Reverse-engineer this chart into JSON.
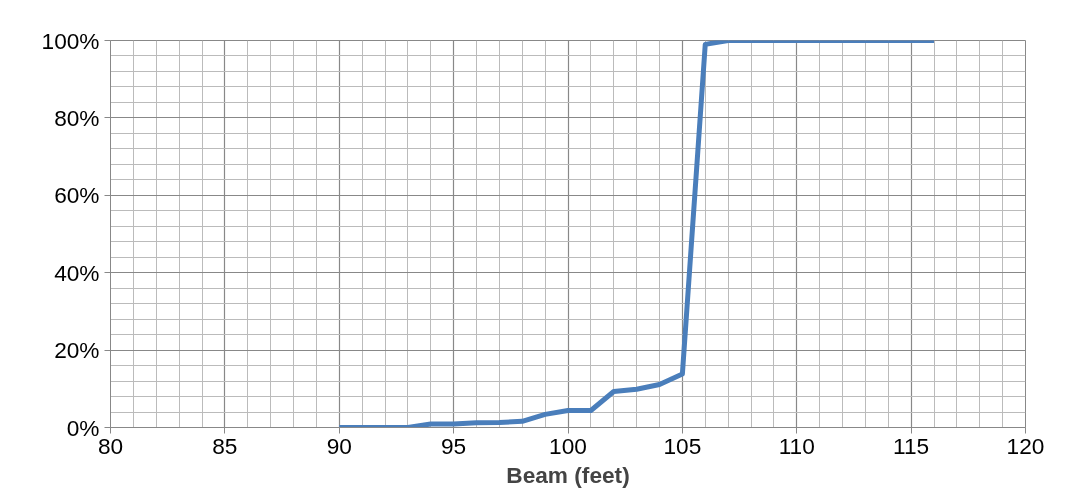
{
  "chart_data": {
    "type": "line",
    "xlabel": "Beam (feet)",
    "x": [
      90,
      91,
      92,
      93,
      94,
      95,
      96,
      97,
      98,
      99,
      100,
      101,
      102,
      103,
      104,
      105,
      106,
      107,
      108,
      109,
      110,
      111,
      112,
      113,
      114,
      115,
      116
    ],
    "series": [
      {
        "color": "#4a7ebb",
        "values": [
          0,
          0,
          0,
          0,
          0.9,
          0.9,
          1.2,
          1.3,
          1.6,
          3.4,
          4.4,
          4.4,
          9.3,
          9.9,
          11.1,
          13.8,
          99,
          100,
          100,
          100,
          100,
          100,
          100,
          100,
          100,
          100,
          100
        ]
      }
    ],
    "xlim": [
      80,
      120
    ],
    "xticks": [
      80,
      85,
      90,
      95,
      100,
      105,
      110,
      115,
      120
    ],
    "ylim": [
      0,
      100
    ],
    "yticks": [
      {
        "value": 0,
        "label": "0%"
      },
      {
        "value": 20,
        "label": "20%"
      },
      {
        "value": 40,
        "label": "40%"
      },
      {
        "value": 60,
        "label": "60%"
      },
      {
        "value": 80,
        "label": "80%"
      },
      {
        "value": 100,
        "label": "100%"
      }
    ],
    "grid": true,
    "line_style": "solid"
  }
}
